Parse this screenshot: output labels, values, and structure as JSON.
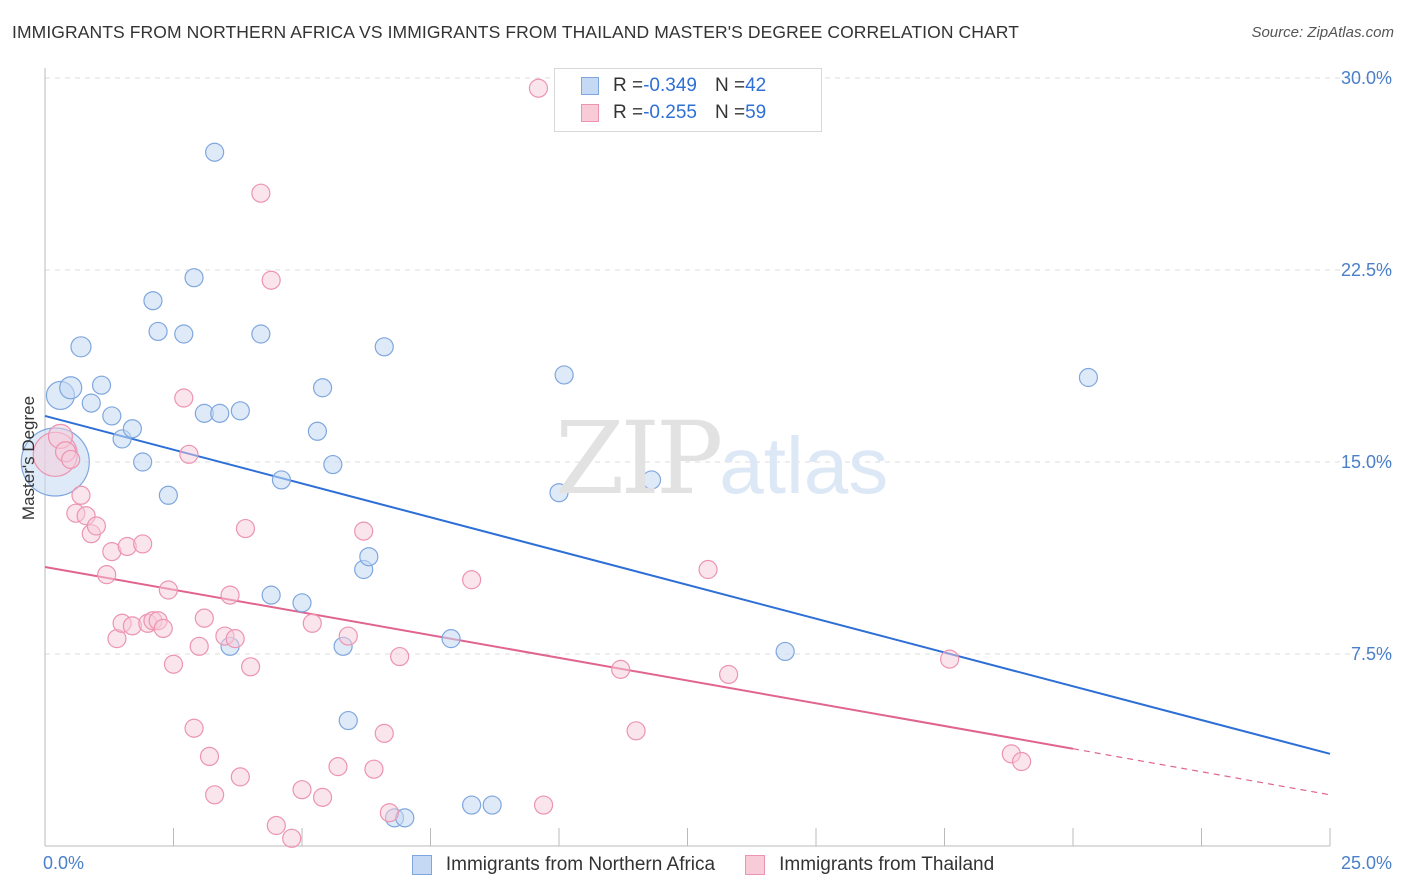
{
  "title": "IMMIGRANTS FROM NORTHERN AFRICA VS IMMIGRANTS FROM THAILAND MASTER'S DEGREE CORRELATION CHART",
  "source": "Source: ZipAtlas.com",
  "watermark": {
    "zip": "ZIP",
    "atlas": "atlas"
  },
  "legend": {
    "rows": [
      {
        "r_label": "R = ",
        "r_value": "-0.349",
        "n_label": "N = ",
        "n_value": "42"
      },
      {
        "r_label": "R = ",
        "r_value": "-0.255",
        "n_label": "N = ",
        "n_value": "59"
      }
    ]
  },
  "colors": {
    "blue_fill": "#c5d9f4",
    "blue_stroke": "#7fa7de",
    "blue_line": "#2d6fd6",
    "pink_fill": "#f8cbd9",
    "pink_stroke": "#ec94b0",
    "pink_line": "#e0648f",
    "grid": "#dddddd",
    "tick_text": "#4a7fc9"
  },
  "chart_data": {
    "type": "scatter",
    "title": "IMMIGRANTS FROM NORTHERN AFRICA VS IMMIGRANTS FROM THAILAND MASTER'S DEGREE CORRELATION CHART",
    "xlabel": "",
    "ylabel": "Master's Degree",
    "xlim": [
      0,
      25
    ],
    "ylim": [
      0,
      30
    ],
    "x_tick_labels": [
      "0.0%",
      "25.0%"
    ],
    "y_ticks": [
      7.5,
      15.0,
      22.5,
      30.0
    ],
    "y_tick_labels": [
      "7.5%",
      "15.0%",
      "22.5%",
      "30.0%"
    ],
    "grid": true,
    "legend_position": "bottom",
    "series": [
      {
        "name": "Immigrants from Northern Africa",
        "color": "#7fa7de",
        "trend": {
          "x": [
            0,
            25
          ],
          "y": [
            16.8,
            3.6
          ]
        },
        "points": [
          [
            0.2,
            15.0,
            34
          ],
          [
            0.3,
            17.6,
            14
          ],
          [
            0.5,
            17.9,
            11
          ],
          [
            0.7,
            19.5,
            10
          ],
          [
            0.9,
            17.3,
            9
          ],
          [
            1.1,
            18.0,
            9
          ],
          [
            1.3,
            16.8,
            9
          ],
          [
            1.5,
            15.9,
            9
          ],
          [
            1.7,
            16.3,
            9
          ],
          [
            1.9,
            15.0,
            9
          ],
          [
            2.1,
            21.3,
            9
          ],
          [
            2.2,
            20.1,
            9
          ],
          [
            2.4,
            13.7,
            9
          ],
          [
            2.7,
            20.0,
            9
          ],
          [
            2.9,
            22.2,
            9
          ],
          [
            3.1,
            16.9,
            9
          ],
          [
            3.3,
            27.1,
            9
          ],
          [
            3.4,
            16.9,
            9
          ],
          [
            3.6,
            7.8,
            9
          ],
          [
            3.8,
            17.0,
            9
          ],
          [
            4.2,
            20.0,
            9
          ],
          [
            4.4,
            9.8,
            9
          ],
          [
            4.6,
            14.3,
            9
          ],
          [
            5.0,
            9.5,
            9
          ],
          [
            5.3,
            16.2,
            9
          ],
          [
            5.4,
            17.9,
            9
          ],
          [
            5.6,
            14.9,
            9
          ],
          [
            5.8,
            7.8,
            9
          ],
          [
            5.9,
            4.9,
            9
          ],
          [
            6.2,
            10.8,
            9
          ],
          [
            6.3,
            11.3,
            9
          ],
          [
            6.6,
            19.5,
            9
          ],
          [
            6.8,
            1.1,
            9
          ],
          [
            7.0,
            1.1,
            9
          ],
          [
            7.9,
            8.1,
            9
          ],
          [
            8.3,
            1.6,
            9
          ],
          [
            8.7,
            1.6,
            9
          ],
          [
            10.0,
            13.8,
            9
          ],
          [
            10.1,
            18.4,
            9
          ],
          [
            11.8,
            14.3,
            9
          ],
          [
            14.4,
            7.6,
            9
          ],
          [
            20.3,
            18.3,
            9
          ]
        ]
      },
      {
        "name": "Immigrants from Thailand",
        "color": "#ec94b0",
        "trend": {
          "x": [
            0,
            20.0
          ],
          "y": [
            10.9,
            3.8
          ]
        },
        "trend_dashed": {
          "x": [
            20.0,
            25
          ],
          "y": [
            3.8,
            2.0
          ]
        },
        "points": [
          [
            0.2,
            15.3,
            22
          ],
          [
            0.3,
            16.0,
            12
          ],
          [
            0.4,
            15.4,
            10
          ],
          [
            0.5,
            15.1,
            9
          ],
          [
            0.6,
            13.0,
            9
          ],
          [
            0.7,
            13.7,
            9
          ],
          [
            0.8,
            12.9,
            9
          ],
          [
            0.9,
            12.2,
            9
          ],
          [
            1.0,
            12.5,
            9
          ],
          [
            1.2,
            10.6,
            9
          ],
          [
            1.3,
            11.5,
            9
          ],
          [
            1.4,
            8.1,
            9
          ],
          [
            1.5,
            8.7,
            9
          ],
          [
            1.6,
            11.7,
            9
          ],
          [
            1.7,
            8.6,
            9
          ],
          [
            1.9,
            11.8,
            9
          ],
          [
            2.0,
            8.7,
            9
          ],
          [
            2.1,
            8.8,
            9
          ],
          [
            2.2,
            8.8,
            9
          ],
          [
            2.3,
            8.5,
            9
          ],
          [
            2.4,
            10.0,
            9
          ],
          [
            2.5,
            7.1,
            9
          ],
          [
            2.7,
            17.5,
            9
          ],
          [
            2.8,
            15.3,
            9
          ],
          [
            2.9,
            4.6,
            9
          ],
          [
            3.0,
            7.8,
            9
          ],
          [
            3.1,
            8.9,
            9
          ],
          [
            3.2,
            3.5,
            9
          ],
          [
            3.3,
            2.0,
            9
          ],
          [
            3.5,
            8.2,
            9
          ],
          [
            3.6,
            9.8,
            9
          ],
          [
            3.7,
            8.1,
            9
          ],
          [
            3.8,
            2.7,
            9
          ],
          [
            3.9,
            12.4,
            9
          ],
          [
            4.0,
            7.0,
            9
          ],
          [
            4.2,
            25.5,
            9
          ],
          [
            4.4,
            22.1,
            9
          ],
          [
            4.5,
            0.8,
            9
          ],
          [
            4.8,
            0.3,
            9
          ],
          [
            5.0,
            2.2,
            9
          ],
          [
            5.2,
            8.7,
            9
          ],
          [
            5.4,
            1.9,
            9
          ],
          [
            5.7,
            3.1,
            9
          ],
          [
            5.9,
            8.2,
            9
          ],
          [
            6.2,
            12.3,
            9
          ],
          [
            6.4,
            3.0,
            9
          ],
          [
            6.6,
            4.4,
            9
          ],
          [
            6.7,
            1.3,
            9
          ],
          [
            6.9,
            7.4,
            9
          ],
          [
            8.3,
            10.4,
            9
          ],
          [
            9.6,
            29.6,
            9
          ],
          [
            9.7,
            1.6,
            9
          ],
          [
            11.2,
            6.9,
            9
          ],
          [
            11.5,
            4.5,
            9
          ],
          [
            12.9,
            10.8,
            9
          ],
          [
            13.3,
            6.7,
            9
          ],
          [
            17.6,
            7.3,
            9
          ],
          [
            18.8,
            3.6,
            9
          ],
          [
            19.0,
            3.3,
            9
          ]
        ]
      }
    ]
  }
}
